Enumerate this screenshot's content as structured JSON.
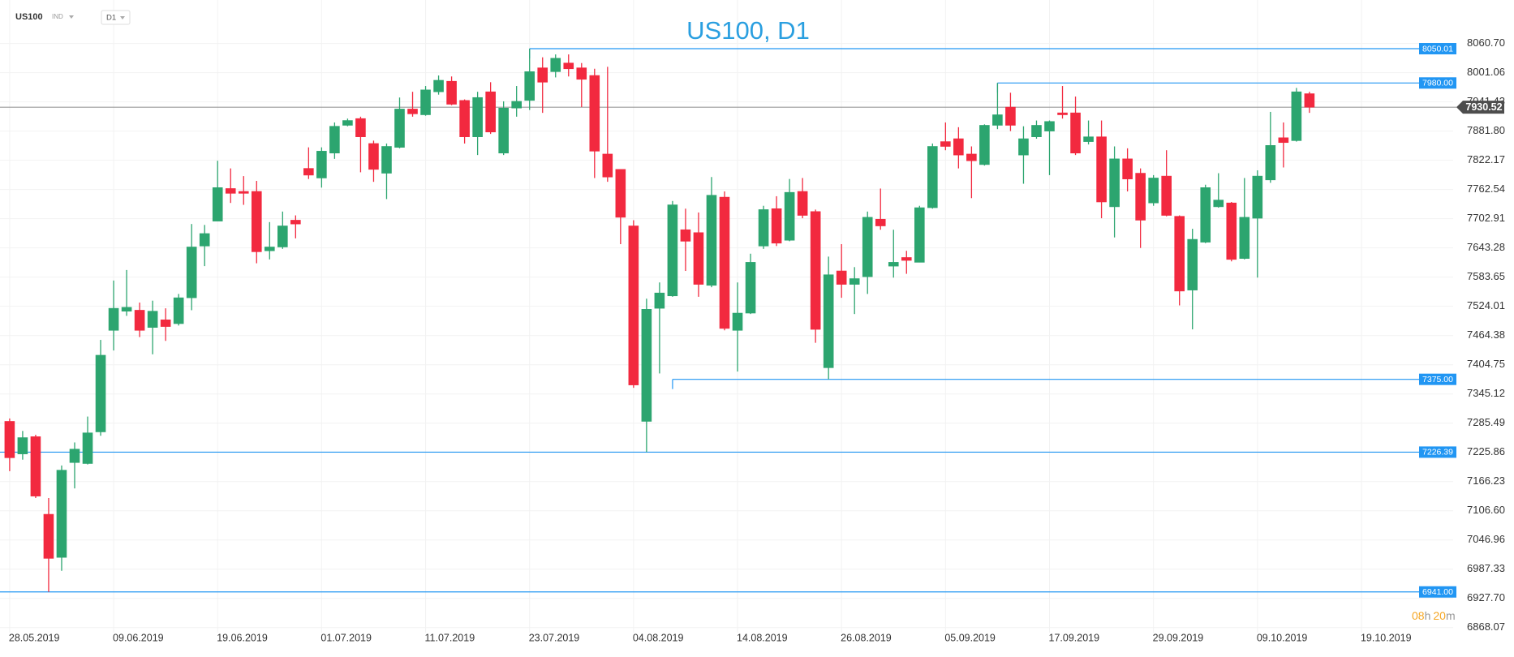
{
  "toolbar": {
    "symbol": "US100",
    "market": "IND",
    "timeframe": "D1"
  },
  "chart_data": {
    "type": "candlestick",
    "title": "US100, D1",
    "categories": [
      "28.05.2019",
      null,
      null,
      null,
      null,
      null,
      null,
      null,
      "09.06.2019",
      null,
      null,
      null,
      null,
      null,
      null,
      null,
      "19.06.2019",
      null,
      null,
      null,
      null,
      null,
      null,
      null,
      "01.07.2019",
      null,
      null,
      null,
      null,
      null,
      null,
      null,
      "11.07.2019",
      null,
      null,
      null,
      null,
      null,
      null,
      null,
      "23.07.2019",
      null,
      null,
      null,
      null,
      null,
      null,
      null,
      "04.08.2019",
      null,
      null,
      null,
      null,
      null,
      null,
      null,
      "14.08.2019",
      null,
      null,
      null,
      null,
      null,
      null,
      null,
      "26.08.2019",
      null,
      null,
      null,
      null,
      null,
      null,
      null,
      "05.09.2019",
      null,
      null,
      null,
      null,
      null,
      null,
      null,
      "17.09.2019",
      null,
      null,
      null,
      null,
      null,
      null,
      null,
      "29.09.2019",
      null,
      null,
      null,
      null,
      null,
      null,
      null,
      "09.10.2019",
      null,
      null,
      null,
      null,
      null,
      null,
      null,
      "19.10.2019"
    ],
    "open": [
      7289.2,
      7222.7,
      7257.9,
      7099.5,
      7011.5,
      7205.1,
      7203.1,
      7267.7,
      7475.0,
      7514.1,
      7516.1,
      7480.9,
      7496.5,
      7488.7,
      7541.5,
      7647.1,
      7698.0,
      7764.5,
      7758.6,
      7758.6,
      7637.4,
      7645.2,
      7699.9,
      7805.6,
      7786.0,
      7836.9,
      7893.6,
      7907.3,
      7856.4,
      7795.8,
      7848.6,
      7926.8,
      7915.1,
      7962.0,
      7983.5,
      7944.4,
      7870.1,
      7962.0,
      7836.9,
      7928.8,
      7944.4,
      8010.9,
      8003.1,
      8020.7,
      8010.9,
      7995.3,
      7834.9,
      7803.6,
      7688.2,
      7289.2,
      7520.0,
      7545.4,
      7680.4,
      7674.5,
      7566.9,
      7746.9,
      7475.0,
      7510.2,
      7647.1,
      7723.4,
      7658.9,
      7758.6,
      7717.5,
      7398.7,
      7596.3,
      7568.9,
      7584.5,
      7701.9,
      7606.1,
      7623.7,
      7613.9,
      7725.4,
      7860.3,
      7866.2,
      7834.9,
      7813.4,
      7893.6,
      7930.7,
      7832.9,
      7870.1,
      7881.8,
      7919.0,
      7919.0,
      7860.3,
      7870.1,
      7727.3,
      7825.1,
      7795.8,
      7735.1,
      7789.9,
      7707.8,
      7557.2,
      7655.0,
      7727.3,
      7735.1,
      7621.7,
      7703.9,
      7782.1,
      7868.2,
      7862.3,
      7958.1,
      null,
      null,
      null,
      null
    ],
    "high": [
      7295.1,
      7269.6,
      7261.8,
      7132.7,
      7199.2,
      7246.2,
      7299.0,
      7455.5,
      7576.7,
      7598.2,
      7531.7,
      7535.6,
      7520.0,
      7549.3,
      7692.1,
      7690.2,
      7821.2,
      7805.6,
      7789.9,
      7780.1,
      7696.0,
      7717.5,
      7709.7,
      7848.6,
      7848.6,
      7899.4,
      7907.3,
      7911.2,
      7862.3,
      7856.4,
      7950.3,
      7962.0,
      7973.8,
      7995.3,
      7993.3,
      7946.4,
      7962.0,
      7981.6,
      7942.5,
      7973.8,
      8050.01,
      8032.4,
      8038.3,
      8038.3,
      8020.7,
      8009.0,
      8012.9,
      7803.6,
      7699.9,
      7539.6,
      7572.8,
      7739.1,
      7723.4,
      7715.6,
      7788.0,
      7758.6,
      7572.8,
      7631.5,
      7729.3,
      7748.8,
      7784.0,
      7786.0,
      7721.5,
      7625.6,
      7651.0,
      7604.1,
      7717.5,
      7764.5,
      7680.4,
      7637.4,
      7729.3,
      7856.4,
      7899.4,
      7889.7,
      7850.5,
      7895.5,
      7980.0,
      7960.1,
      7891.6,
      7903.4,
      7903.4,
      7973.8,
      7952.3,
      7903.4,
      7903.4,
      7850.5,
      7846.6,
      7805.6,
      7791.9,
      7842.7,
      7709.7,
      7682.3,
      7772.3,
      7795.8,
      7737.1,
      7786.0,
      7801.6,
      7921.0,
      7899.4,
      7969.9,
      7962.0,
      null,
      null,
      null,
      null
    ],
    "low": [
      7187.5,
      7211.0,
      7132.7,
      6941.0,
      6984.1,
      7152.3,
      7201.2,
      7259.8,
      7433.9,
      7504.6,
      7461.3,
      7426.1,
      7453.5,
      7484.8,
      7516.1,
      7606.1,
      7698.0,
      7735.1,
      7731.2,
      7611.9,
      7619.8,
      7641.3,
      7662.8,
      7784.0,
      7766.4,
      7825.1,
      7891.6,
      7797.7,
      7778.2,
      7743.0,
      7846.6,
      7911.2,
      7913.1,
      7956.2,
      7934.7,
      7856.4,
      7832.9,
      7876.0,
      7832.9,
      7911.2,
      7924.9,
      7919.0,
      7991.4,
      7993.3,
      7930.7,
      7786.0,
      7778.2,
      7651.0,
      7357.7,
      7226.39,
      7387.0,
      7543.5,
      7596.3,
      7543.5,
      7563.0,
      7475.0,
      7390.9,
      7508.3,
      7641.3,
      7647.1,
      7656.9,
      7703.9,
      7449.6,
      7375.0,
      7541.5,
      7508.3,
      7549.3,
      7680.4,
      7582.6,
      7590.4,
      7613.9,
      7723.4,
      7842.7,
      7805.6,
      7744.9,
      7811.4,
      7885.8,
      7881.8,
      7774.3,
      7866.2,
      7791.9,
      7907.3,
      7832.9,
      7854.5,
      7703.9,
      7664.7,
      7758.6,
      7643.2,
      7729.3,
      7707.8,
      7525.9,
      7477.0,
      7653.0,
      7725.4,
      7615.8,
      7619.8,
      7582.6,
      7776.2,
      7807.5,
      7860.3,
      7919.0,
      null,
      null,
      null,
      null
    ],
    "close": [
      7214.9,
      7256.0,
      7136.6,
      7009.5,
      7189.5,
      7232.5,
      7265.7,
      7424.2,
      7520.0,
      7522.0,
      7475.0,
      7514.1,
      7482.8,
      7541.5,
      7645.2,
      7672.6,
      7766.4,
      7754.7,
      7754.7,
      7635.4,
      7645.2,
      7688.2,
      7692.1,
      7791.9,
      7840.8,
      7891.6,
      7903.4,
      7870.1,
      7803.6,
      7850.5,
      7926.8,
      7917.0,
      7965.9,
      7985.5,
      7936.6,
      7870.1,
      7950.3,
      7879.9,
      7928.8,
      7942.5,
      8003.1,
      7981.6,
      8030.5,
      8009.0,
      7987.5,
      7840.8,
      7788.0,
      7705.8,
      7363.5,
      7518.0,
      7551.3,
      7731.2,
      7656.9,
      7568.9,
      7750.8,
      7478.9,
      7510.2,
      7613.9,
      7721.5,
      7653.0,
      7756.7,
      7709.7,
      7477.0,
      7588.5,
      7568.9,
      7580.6,
      7705.8,
      7688.2,
      7613.9,
      7617.8,
      7725.4,
      7850.5,
      7850.5,
      7832.9,
      7821.2,
      7893.6,
      7915.1,
      7893.6,
      7866.2,
      7893.6,
      7901.4,
      7915.1,
      7836.9,
      7870.1,
      7737.1,
      7825.1,
      7784.0,
      7699.9,
      7786.0,
      7709.7,
      7555.2,
      7660.8,
      7766.4,
      7741.0,
      7619.8,
      7705.8,
      7789.9,
      7852.5,
      7858.4,
      7962.0,
      7930.52,
      null,
      null,
      null,
      null
    ],
    "up_color": "#2ca56f",
    "down_color": "#f2293f",
    "ylim": [
      6824.7,
      8149.4
    ],
    "yticks": [
      {
        "value": 8060.7,
        "label": "8060.70"
      },
      8001.06,
      7941.43,
      {
        "value": 7881.8,
        "label": "7881.80"
      },
      7822.17,
      7762.54,
      7702.91,
      7643.28,
      7583.65,
      7524.01,
      7464.38,
      7404.75,
      7345.12,
      7285.49,
      7225.86,
      7166.23,
      {
        "value": 7106.6,
        "label": "7106.60"
      },
      7046.96,
      6987.33,
      {
        "value": 6927.7,
        "label": "6927.70"
      },
      6868.07
    ],
    "grid": true,
    "levels": [
      8050.01,
      {
        "value": 7980,
        "label": "7980.00"
      },
      {
        "value": 7375,
        "label": "7375.00"
      },
      7226.39,
      {
        "value": 6941,
        "label": "6941.00"
      }
    ],
    "level_color": "#2196f3",
    "current_price": 7930.52,
    "countdown": {
      "hours": "08",
      "hours_unit": "h",
      "minutes": "20",
      "minutes_unit": "m"
    }
  }
}
